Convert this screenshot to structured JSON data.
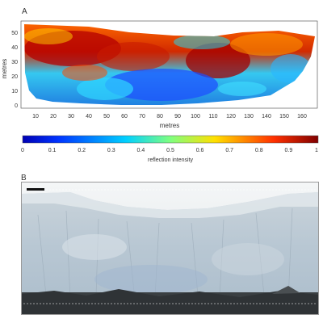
{
  "panel_a": {
    "letter": "A",
    "xlabel": "metres",
    "ylabel": "metres",
    "x_ticks": [
      "10",
      "20",
      "30",
      "40",
      "50",
      "60",
      "70",
      "80",
      "90",
      "100",
      "110",
      "120",
      "130",
      "140",
      "150",
      "160"
    ],
    "y_ticks": [
      "0",
      "10",
      "20",
      "30",
      "40",
      "50"
    ],
    "colors": {
      "low": "#1a2cff",
      "mid": "#3fe0ff",
      "high": "#b40000"
    }
  },
  "colorbar": {
    "label": "reflection intensity",
    "ticks": [
      "0",
      "0.1",
      "0.2",
      "0.3",
      "0.4",
      "0.5",
      "0.6",
      "0.7",
      "0.8",
      "0.9",
      "1"
    ]
  },
  "panel_b": {
    "letter": "B",
    "colors": {
      "sky": "#e8ecee",
      "ice": "#c6d3de",
      "water": "#3a3f42"
    }
  }
}
